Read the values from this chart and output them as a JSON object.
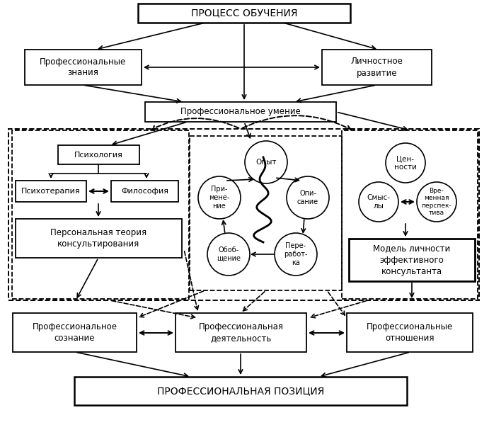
{
  "title_top": "ПРОЦЕСС ОБУЧЕНИЯ",
  "title_bottom": "ПРОФЕССИОНАЛЬНАЯ ПОЗИЦИЯ",
  "box_prof_znania": "Профессиональные\nзнания",
  "box_lichn_razvitie": "Личностное\nразвитие",
  "box_prof_umenie": "Профессиональное умение",
  "box_psihologia": "Психология",
  "box_psihoterapia": "Психотерапия",
  "box_filosofia": "Философия",
  "box_personal_teoria": "Персональная теория\nконсультирования",
  "box_model_lichnosti": "Модель личности\nэффективного\nконсультанта",
  "box_prof_soznanie": "Профессиональное\nсознание",
  "box_prof_deyatelnost": "Профессиональная\nдеятельность",
  "box_prof_otnoshenia": "Профессиональные\nотношения",
  "circle_opyt": "Опыт",
  "circle_opisanie": "Опи-\nсание",
  "circle_pererabotka": "Пере-\nработ-\nка",
  "circle_obobshenie": "Обоб-\nщение",
  "circle_primenenie": "При-\nмене-\nние",
  "circle_cennosti": "Цен-\nности",
  "circle_smysly": "Смыс-\nлы",
  "circle_vremennaya": "Вре-\nменная\nперспек-\nтива"
}
